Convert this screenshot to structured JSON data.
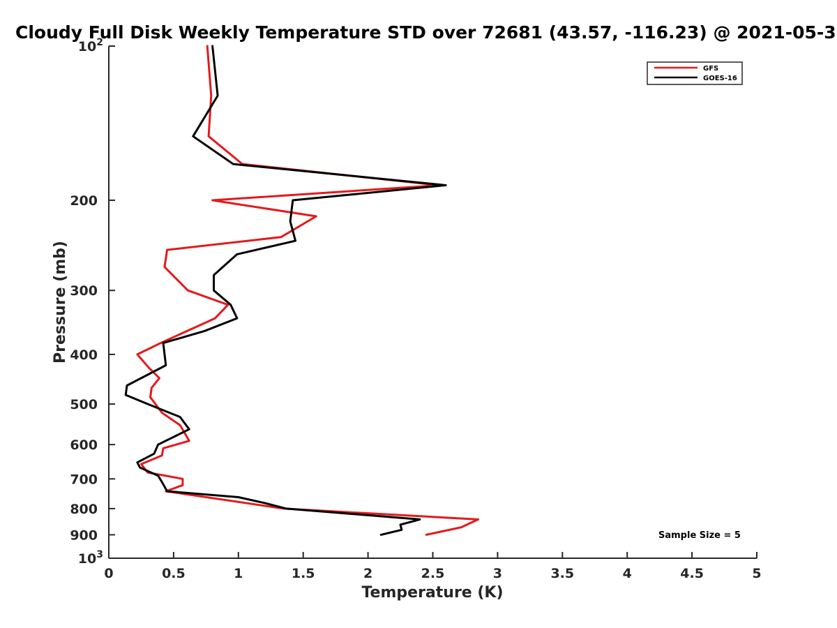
{
  "chart_data": {
    "type": "line",
    "title": "Cloudy Full Disk Weekly Temperature STD over 72681 (43.57, -116.23) @ 2021-05-3",
    "xlabel": "Temperature (K)",
    "ylabel": "Pressure (mb)",
    "xlim": [
      0,
      5
    ],
    "ylim": [
      100,
      1000
    ],
    "y_scale": "log",
    "y_reversed": true,
    "x_ticks": [
      "0",
      "0.5",
      "1",
      "1.5",
      "2",
      "2.5",
      "3",
      "3.5",
      "4",
      "4.5",
      "5"
    ],
    "y_ticks": [
      {
        "value": 100,
        "base": "10",
        "exp": "2"
      },
      {
        "value": 200,
        "label": "200"
      },
      {
        "value": 300,
        "label": "300"
      },
      {
        "value": 400,
        "label": "400"
      },
      {
        "value": 500,
        "label": "500"
      },
      {
        "value": 600,
        "label": "600"
      },
      {
        "value": 700,
        "label": "700"
      },
      {
        "value": 800,
        "label": "800"
      },
      {
        "value": 900,
        "label": "900"
      },
      {
        "value": 1000,
        "base": "10",
        "exp": "3"
      }
    ],
    "grid": false,
    "legend_position": "top-right",
    "series": [
      {
        "name": "GFS",
        "color": "#e31a1c",
        "points": [
          [
            0.76,
            100
          ],
          [
            0.79,
            125
          ],
          [
            0.77,
            150
          ],
          [
            1.03,
            170
          ],
          [
            2.55,
            187
          ],
          [
            0.8,
            200
          ],
          [
            1.6,
            215
          ],
          [
            1.33,
            236
          ],
          [
            0.45,
            250
          ],
          [
            0.43,
            270
          ],
          [
            0.61,
            300
          ],
          [
            0.92,
            320
          ],
          [
            0.82,
            340
          ],
          [
            0.4,
            380
          ],
          [
            0.22,
            400
          ],
          [
            0.31,
            425
          ],
          [
            0.39,
            445
          ],
          [
            0.33,
            465
          ],
          [
            0.32,
            485
          ],
          [
            0.41,
            520
          ],
          [
            0.55,
            550
          ],
          [
            0.62,
            590
          ],
          [
            0.42,
            610
          ],
          [
            0.41,
            630
          ],
          [
            0.25,
            655
          ],
          [
            0.3,
            680
          ],
          [
            0.57,
            700
          ],
          [
            0.57,
            720
          ],
          [
            0.44,
            740
          ],
          [
            1.35,
            800
          ],
          [
            2.85,
            840
          ],
          [
            2.72,
            870
          ],
          [
            2.45,
            900
          ]
        ]
      },
      {
        "name": "GOES-16",
        "color": "#000000",
        "points": [
          [
            0.8,
            100
          ],
          [
            0.84,
            125
          ],
          [
            0.65,
            150
          ],
          [
            0.96,
            170
          ],
          [
            2.6,
            187
          ],
          [
            1.42,
            200
          ],
          [
            1.4,
            220
          ],
          [
            1.44,
            240
          ],
          [
            0.99,
            255
          ],
          [
            0.81,
            280
          ],
          [
            0.81,
            300
          ],
          [
            0.94,
            320
          ],
          [
            0.99,
            340
          ],
          [
            0.74,
            360
          ],
          [
            0.42,
            380
          ],
          [
            0.44,
            420
          ],
          [
            0.14,
            460
          ],
          [
            0.13,
            480
          ],
          [
            0.3,
            500
          ],
          [
            0.55,
            530
          ],
          [
            0.62,
            560
          ],
          [
            0.38,
            600
          ],
          [
            0.35,
            625
          ],
          [
            0.22,
            650
          ],
          [
            0.24,
            665
          ],
          [
            0.38,
            690
          ],
          [
            0.41,
            710
          ],
          [
            0.45,
            740
          ],
          [
            1.0,
            760
          ],
          [
            1.2,
            780
          ],
          [
            1.37,
            800
          ],
          [
            2.4,
            840
          ],
          [
            2.25,
            860
          ],
          [
            2.26,
            880
          ],
          [
            2.1,
            900
          ]
        ]
      }
    ],
    "annotation": "Sample Size = 5"
  }
}
